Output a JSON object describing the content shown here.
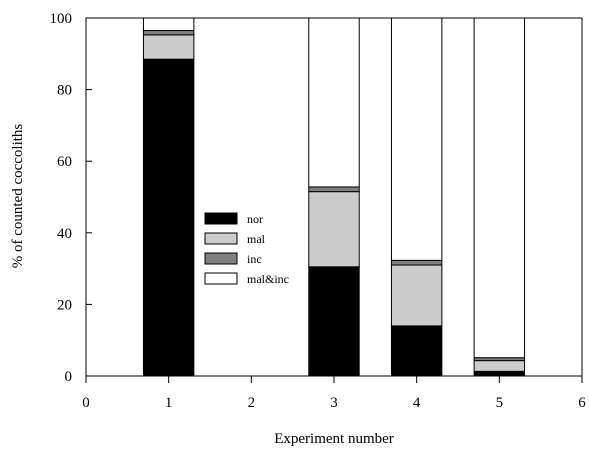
{
  "chart_data": {
    "type": "bar",
    "stacked": true,
    "title": "",
    "xlabel": "Experiment number",
    "ylabel": "% of counted coccoliths",
    "xlim": [
      0,
      6
    ],
    "ylim": [
      0,
      100
    ],
    "xticks": [
      0,
      1,
      2,
      3,
      4,
      5,
      6
    ],
    "yticks": [
      0,
      20,
      40,
      60,
      80,
      100
    ],
    "x": [
      1,
      3,
      4,
      5
    ],
    "series": [
      {
        "name": "nor",
        "color": "#000000",
        "values": [
          88.5,
          30.5,
          14,
          1.3
        ]
      },
      {
        "name": "mal",
        "color": "#cccccc",
        "values": [
          6.8,
          21,
          17,
          3
        ]
      },
      {
        "name": "inc",
        "color": "#808080",
        "values": [
          1.2,
          1.3,
          1.3,
          0.8
        ]
      },
      {
        "name": "mal&inc",
        "color": "#ffffff",
        "values": [
          3.5,
          47.2,
          67.7,
          94.9
        ]
      }
    ],
    "legend_position": "center-left",
    "grid": false
  }
}
